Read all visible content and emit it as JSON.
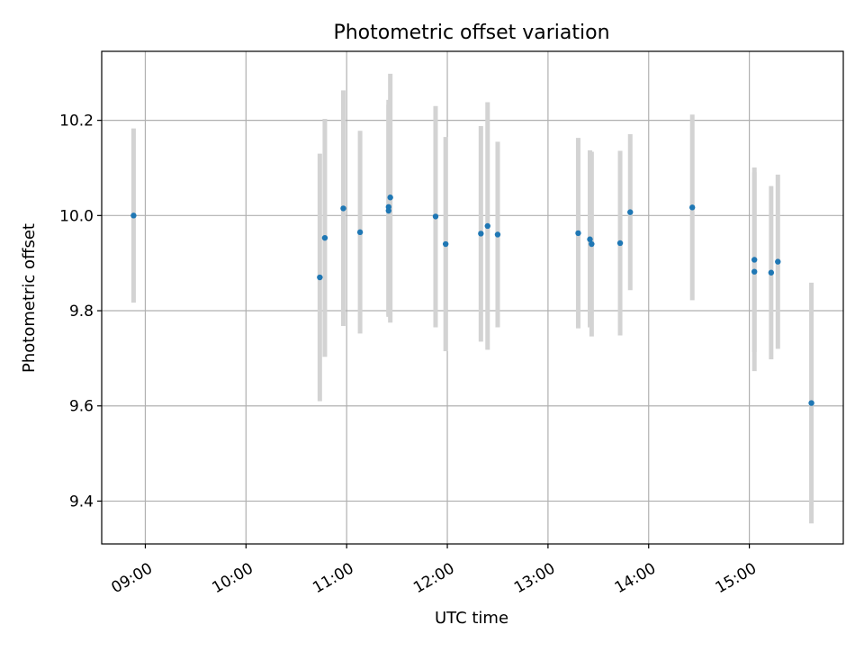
{
  "chart_data": {
    "type": "scatter",
    "title": "Photometric offset variation",
    "xlabel": "UTC time",
    "ylabel": "Photometric offset",
    "xlim": [
      "08:34",
      "15:56"
    ],
    "ylim": [
      9.31,
      10.345
    ],
    "xticks": [
      "09:00",
      "10:00",
      "11:00",
      "12:00",
      "13:00",
      "14:00",
      "15:00"
    ],
    "yticks": [
      "9.4",
      "9.6",
      "9.8",
      "10.0",
      "10.2"
    ],
    "grid": true,
    "point_color": "#1f77b4",
    "errorbar_color": "#d3d3d3",
    "points": [
      {
        "x": "08:53",
        "y": 10.0,
        "lo": 9.817,
        "hi": 10.183
      },
      {
        "x": "10:44",
        "y": 9.87,
        "lo": 9.61,
        "hi": 10.13
      },
      {
        "x": "10:47",
        "y": 9.953,
        "lo": 9.703,
        "hi": 10.203
      },
      {
        "x": "10:58",
        "y": 10.015,
        "lo": 9.768,
        "hi": 10.263
      },
      {
        "x": "11:08",
        "y": 9.965,
        "lo": 9.752,
        "hi": 10.178
      },
      {
        "x": "11:25",
        "y": 10.018,
        "lo": 9.79,
        "hi": 10.243
      },
      {
        "x": "11:25",
        "y": 10.01,
        "lo": 9.787,
        "hi": 10.233
      },
      {
        "x": "11:26",
        "y": 10.038,
        "lo": 9.775,
        "hi": 10.298
      },
      {
        "x": "11:53",
        "y": 9.998,
        "lo": 9.765,
        "hi": 10.23
      },
      {
        "x": "11:59",
        "y": 9.94,
        "lo": 9.715,
        "hi": 10.165
      },
      {
        "x": "12:20",
        "y": 9.962,
        "lo": 9.735,
        "hi": 10.188
      },
      {
        "x": "12:24",
        "y": 9.978,
        "lo": 9.718,
        "hi": 10.238
      },
      {
        "x": "12:30",
        "y": 9.96,
        "lo": 9.765,
        "hi": 10.155
      },
      {
        "x": "13:18",
        "y": 9.963,
        "lo": 9.763,
        "hi": 10.163
      },
      {
        "x": "13:25",
        "y": 9.95,
        "lo": 9.765,
        "hi": 10.137
      },
      {
        "x": "13:26",
        "y": 9.94,
        "lo": 9.746,
        "hi": 10.134
      },
      {
        "x": "13:43",
        "y": 9.942,
        "lo": 9.748,
        "hi": 10.136
      },
      {
        "x": "13:49",
        "y": 10.007,
        "lo": 9.843,
        "hi": 10.171
      },
      {
        "x": "14:26",
        "y": 10.017,
        "lo": 9.822,
        "hi": 10.212
      },
      {
        "x": "15:03",
        "y": 9.907,
        "lo": 9.713,
        "hi": 10.101
      },
      {
        "x": "15:03",
        "y": 9.882,
        "lo": 9.673,
        "hi": 10.091
      },
      {
        "x": "15:13",
        "y": 9.88,
        "lo": 9.698,
        "hi": 10.062
      },
      {
        "x": "15:17",
        "y": 9.903,
        "lo": 9.72,
        "hi": 10.086
      },
      {
        "x": "15:37",
        "y": 9.606,
        "lo": 9.353,
        "hi": 9.859
      }
    ]
  }
}
